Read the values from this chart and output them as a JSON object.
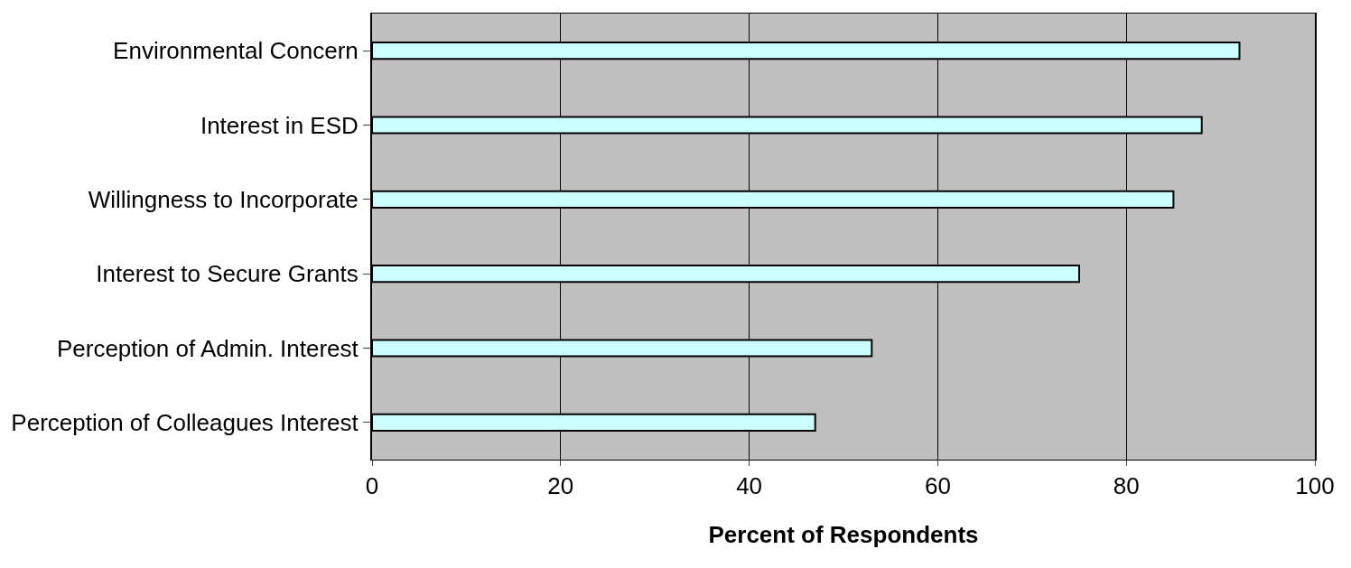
{
  "chart_data": {
    "type": "bar",
    "orientation": "horizontal",
    "xlabel": "Percent of Respondents",
    "categories": [
      "Environmental Concern",
      "Interest in ESD",
      "Willingness to Incorporate",
      "Interest to Secure Grants",
      "Perception of Admin. Interest",
      "Perception of Colleagues Interest"
    ],
    "values": [
      92,
      88,
      85,
      75,
      53,
      47
    ],
    "color": "#ccffff",
    "xlim": [
      0,
      100
    ],
    "xticks": [
      0,
      20,
      40,
      60,
      80,
      100
    ],
    "grid": "x"
  }
}
